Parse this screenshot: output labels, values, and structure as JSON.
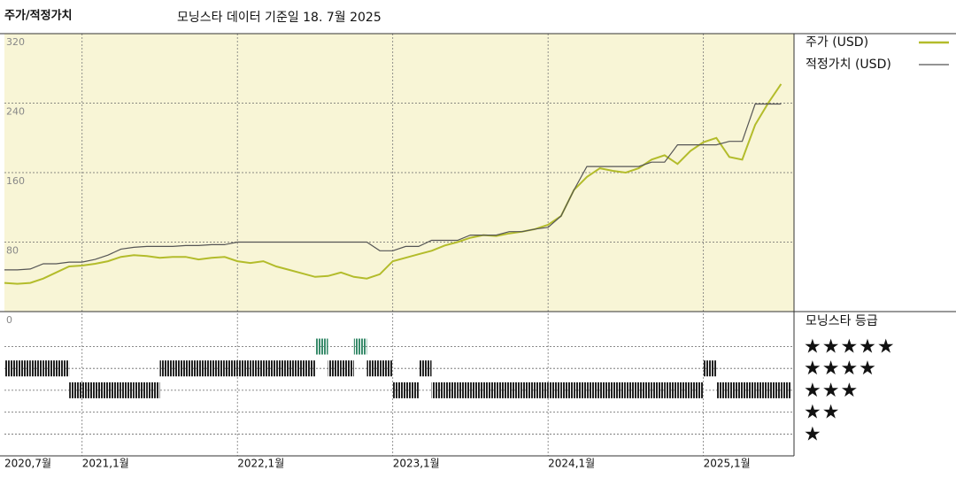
{
  "chart_data": [
    {
      "type": "line",
      "title": "주가/적정가치",
      "subtitle": "모닝스타 데이터 기준일 18. 7월 2025",
      "x": [
        "2020-07",
        "2020-08",
        "2020-09",
        "2020-10",
        "2020-11",
        "2020-12",
        "2021-01",
        "2021-02",
        "2021-03",
        "2021-04",
        "2021-05",
        "2021-06",
        "2021-07",
        "2021-08",
        "2021-09",
        "2021-10",
        "2021-11",
        "2021-12",
        "2022-01",
        "2022-02",
        "2022-03",
        "2022-04",
        "2022-05",
        "2022-06",
        "2022-07",
        "2022-08",
        "2022-09",
        "2022-10",
        "2022-11",
        "2022-12",
        "2023-01",
        "2023-02",
        "2023-03",
        "2023-04",
        "2023-05",
        "2023-06",
        "2023-07",
        "2023-08",
        "2023-09",
        "2023-10",
        "2023-11",
        "2023-12",
        "2024-01",
        "2024-02",
        "2024-03",
        "2024-04",
        "2024-05",
        "2024-06",
        "2024-07",
        "2024-08",
        "2024-09",
        "2024-10",
        "2024-11",
        "2024-12",
        "2025-01",
        "2025-02",
        "2025-03",
        "2025-04",
        "2025-05",
        "2025-06",
        "2025-07"
      ],
      "series": [
        {
          "name": "주가 (USD)",
          "color": "#b3bc2b",
          "values": [
            33,
            32,
            33,
            38,
            45,
            52,
            53,
            55,
            58,
            63,
            65,
            64,
            62,
            63,
            63,
            60,
            62,
            63,
            58,
            56,
            58,
            52,
            48,
            44,
            40,
            41,
            45,
            40,
            38,
            43,
            58,
            62,
            66,
            70,
            76,
            80,
            85,
            88,
            87,
            90,
            92,
            95,
            100,
            110,
            140,
            155,
            165,
            162,
            160,
            165,
            175,
            180,
            170,
            185,
            195,
            200,
            178,
            175,
            215,
            240,
            262
          ]
        },
        {
          "name": "적정가치 (USD)",
          "color": "#555555",
          "values": [
            48,
            48,
            49,
            55,
            55,
            57,
            57,
            60,
            65,
            72,
            74,
            75,
            75,
            75,
            76,
            76,
            77,
            77,
            80,
            80,
            80,
            80,
            80,
            80,
            80,
            80,
            80,
            80,
            80,
            70,
            70,
            75,
            75,
            82,
            82,
            82,
            88,
            88,
            88,
            92,
            92,
            95,
            97,
            110,
            140,
            167,
            167,
            167,
            167,
            167,
            172,
            172,
            192,
            192,
            192,
            192,
            196,
            196,
            239,
            239,
            239
          ]
        }
      ],
      "xlim": [
        "2020-07",
        "2025-08"
      ],
      "xticks": [
        {
          "value": "2020-07",
          "label": "2020,7월"
        },
        {
          "value": "2021-01",
          "label": "2021,1월"
        },
        {
          "value": "2022-01",
          "label": "2022,1월"
        },
        {
          "value": "2023-01",
          "label": "2023,1월"
        },
        {
          "value": "2024-01",
          "label": "2024,1월"
        },
        {
          "value": "2025-01",
          "label": "2025,1월"
        }
      ],
      "ylim": [
        0,
        320
      ],
      "yticks": [
        0,
        80,
        160,
        240,
        320
      ],
      "grid": true,
      "background": "#f8f5d6"
    },
    {
      "type": "rating",
      "title": "모닝스타 등급",
      "x": [
        "2020-07",
        "2020-08",
        "2020-09",
        "2020-10",
        "2020-11",
        "2020-12",
        "2021-01",
        "2021-02",
        "2021-03",
        "2021-04",
        "2021-05",
        "2021-06",
        "2021-07",
        "2021-08",
        "2021-09",
        "2021-10",
        "2021-11",
        "2021-12",
        "2022-01",
        "2022-02",
        "2022-03",
        "2022-04",
        "2022-05",
        "2022-06",
        "2022-07",
        "2022-08",
        "2022-09",
        "2022-10",
        "2022-11",
        "2022-12",
        "2023-01",
        "2023-02",
        "2023-03",
        "2023-04",
        "2023-05",
        "2023-06",
        "2023-07",
        "2023-08",
        "2023-09",
        "2023-10",
        "2023-11",
        "2023-12",
        "2024-01",
        "2024-02",
        "2024-03",
        "2024-04",
        "2024-05",
        "2024-06",
        "2024-07",
        "2024-08",
        "2024-09",
        "2024-10",
        "2024-11",
        "2024-12",
        "2025-01",
        "2025-02",
        "2025-03",
        "2025-04",
        "2025-05",
        "2025-06",
        "2025-07"
      ],
      "values": [
        4,
        4,
        4,
        4,
        4,
        3,
        3,
        3,
        3,
        3,
        3,
        3,
        4,
        4,
        4,
        4,
        4,
        4,
        4,
        4,
        4,
        4,
        4,
        4,
        5,
        4,
        4,
        5,
        4,
        4,
        3,
        3,
        4,
        3,
        3,
        3,
        3,
        3,
        3,
        3,
        3,
        3,
        3,
        3,
        3,
        3,
        3,
        3,
        3,
        3,
        3,
        3,
        3,
        3,
        4,
        3,
        3,
        3,
        3,
        3,
        3
      ],
      "xlim": [
        "2020-07",
        "2025-08"
      ],
      "ylim": [
        0,
        6.6
      ],
      "yticks": [
        {
          "value": 5,
          "label": "★★★★★"
        },
        {
          "value": 4,
          "label": "★★★★"
        },
        {
          "value": 3,
          "label": "★★★"
        },
        {
          "value": 2,
          "label": "★★"
        },
        {
          "value": 1,
          "label": "★"
        }
      ],
      "color": "#222222",
      "top_color": "#3a8c6c"
    }
  ]
}
